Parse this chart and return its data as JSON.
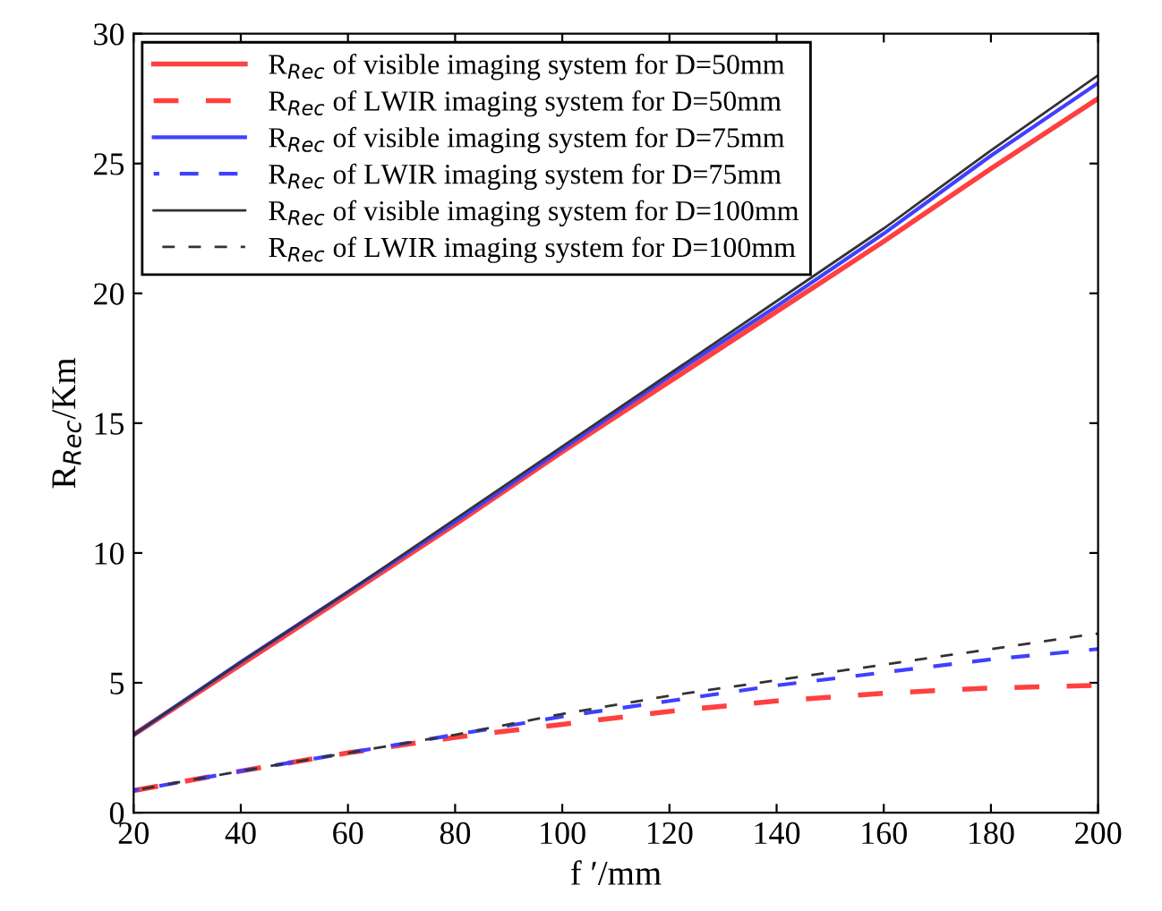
{
  "chart_data": {
    "type": "line",
    "xlabel": "f ′/mm",
    "ylabel": "R$_{Rec}$/Km",
    "x": [
      20,
      40,
      60,
      80,
      100,
      120,
      140,
      160,
      180,
      200
    ],
    "xlim": [
      20,
      200
    ],
    "xticks": [
      20,
      40,
      60,
      80,
      100,
      120,
      140,
      160,
      180,
      200
    ],
    "ylim": [
      0,
      30
    ],
    "yticks": [
      0,
      5,
      10,
      15,
      20,
      25,
      30
    ],
    "grid": false,
    "legend": "top left",
    "marker": "none",
    "series": [
      {
        "name": "R$_{Rec}$ of visible imaging system for D=50mm",
        "color": "#ff4040",
        "line_style": "solid",
        "values": [
          3.0,
          5.7,
          8.4,
          11.1,
          13.9,
          16.6,
          19.3,
          22.0,
          24.8,
          27.5
        ]
      },
      {
        "name": "R$_{Rec}$ of LWIR imaging system for D=50mm",
        "color": "#ff4040",
        "line_style": "dashed",
        "values": [
          0.85,
          1.6,
          2.3,
          2.9,
          3.4,
          3.9,
          4.3,
          4.6,
          4.8,
          4.9
        ]
      },
      {
        "name": "R$_{Rec}$ of visible imaging system for D=75mm",
        "color": "#4040ff",
        "line_style": "solid",
        "values": [
          3.0,
          5.8,
          8.5,
          11.2,
          14.0,
          16.8,
          19.5,
          22.3,
          25.3,
          28.1
        ]
      },
      {
        "name": "R$_{Rec}$ of LWIR imaging system for D=75mm",
        "color": "#4040ff",
        "line_style": "dashed",
        "values": [
          0.85,
          1.6,
          2.3,
          3.0,
          3.7,
          4.3,
          4.9,
          5.4,
          5.9,
          6.3
        ]
      },
      {
        "name": "R$_{Rec}$ of visible imaging system for D=100mm",
        "color": "#333333",
        "line_style": "solid",
        "values": [
          3.0,
          5.8,
          8.5,
          11.3,
          14.1,
          16.9,
          19.7,
          22.5,
          25.5,
          28.4
        ]
      },
      {
        "name": "R$_{Rec}$ of LWIR imaging system for D=100mm",
        "color": "#333333",
        "line_style": "dashed",
        "values": [
          0.85,
          1.6,
          2.3,
          3.0,
          3.8,
          4.5,
          5.1,
          5.7,
          6.3,
          6.9
        ]
      }
    ]
  }
}
